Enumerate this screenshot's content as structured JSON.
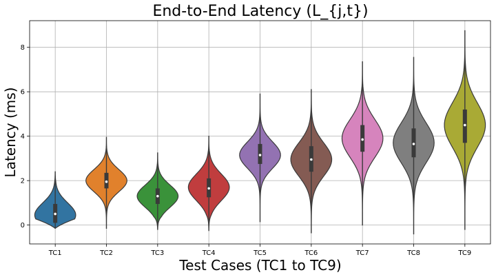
{
  "chart_data": {
    "type": "violin",
    "title": "End-to-End Latency (L_{j,t})",
    "xlabel": "Test Cases (TC1 to TC9)",
    "ylabel": "Latency (ms)",
    "ylim": [
      -0.85,
      9.2
    ],
    "yticks": [
      0,
      2,
      4,
      6,
      8
    ],
    "grid": true,
    "categories": [
      "TC1",
      "TC2",
      "TC3",
      "TC4",
      "TC5",
      "TC6",
      "TC7",
      "TC8",
      "TC9"
    ],
    "series": [
      {
        "name": "TC1",
        "color": "#3274a1",
        "min": -0.15,
        "max": 2.4,
        "q1": 0.1,
        "median": 0.5,
        "q3": 0.95,
        "mean": 0.45,
        "std": 0.55
      },
      {
        "name": "TC2",
        "color": "#e1812c",
        "min": -0.15,
        "max": 3.95,
        "q1": 1.65,
        "median": 1.95,
        "q3": 2.35,
        "mean": 2.0,
        "std": 0.5
      },
      {
        "name": "TC3",
        "color": "#3a923a",
        "min": -0.2,
        "max": 3.25,
        "q1": 0.95,
        "median": 1.3,
        "q3": 1.65,
        "mean": 1.3,
        "std": 0.5
      },
      {
        "name": "TC4",
        "color": "#c03d3e",
        "min": -0.25,
        "max": 4.0,
        "q1": 1.25,
        "median": 1.65,
        "q3": 2.1,
        "mean": 1.7,
        "std": 0.6
      },
      {
        "name": "TC5",
        "color": "#9372b2",
        "min": 0.15,
        "max": 5.9,
        "q1": 2.75,
        "median": 3.15,
        "q3": 3.65,
        "mean": 3.15,
        "std": 0.6
      },
      {
        "name": "TC6",
        "color": "#845b53",
        "min": -0.35,
        "max": 6.1,
        "q1": 2.4,
        "median": 2.95,
        "q3": 3.55,
        "mean": 2.95,
        "std": 0.75
      },
      {
        "name": "TC7",
        "color": "#d684bd",
        "min": 0.0,
        "max": 7.35,
        "q1": 3.3,
        "median": 3.85,
        "q3": 4.5,
        "mean": 3.9,
        "std": 0.85
      },
      {
        "name": "TC8",
        "color": "#7f7f7f",
        "min": -0.4,
        "max": 7.55,
        "q1": 3.05,
        "median": 3.65,
        "q3": 4.35,
        "mean": 3.7,
        "std": 0.9
      },
      {
        "name": "TC9",
        "color": "#a9aa35",
        "min": -0.2,
        "max": 8.75,
        "q1": 3.7,
        "median": 4.5,
        "q3": 5.2,
        "mean": 4.5,
        "std": 1.0
      }
    ]
  }
}
